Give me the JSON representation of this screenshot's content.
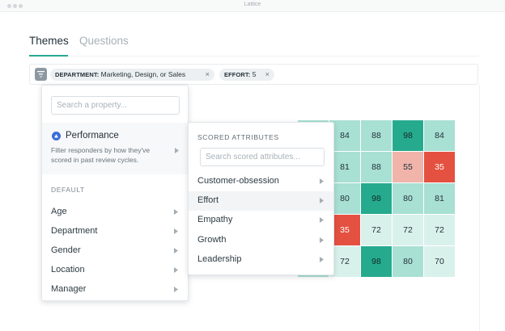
{
  "window": {
    "title": "Lattice"
  },
  "tabs": [
    {
      "label": "Themes",
      "active": true
    },
    {
      "label": "Questions",
      "active": false
    }
  ],
  "filters": {
    "chips": [
      {
        "key": "DEPARTMENT:",
        "value": "Marketing, Design, or Sales"
      },
      {
        "key": "EFFORT:",
        "value": "5"
      }
    ],
    "remove_glyph": "×"
  },
  "property_menu": {
    "search_placeholder": "Search a property...",
    "performance": {
      "title": "Performance",
      "description": "Filter responders by how they've scored in past review cycles."
    },
    "section_label": "DEFAULT",
    "items": [
      {
        "label": "Age"
      },
      {
        "label": "Department"
      },
      {
        "label": "Gender"
      },
      {
        "label": "Location"
      },
      {
        "label": "Manager"
      }
    ]
  },
  "scored_menu": {
    "section_label": "SCORED ATTRIBUTES",
    "search_placeholder": "Search scored attributes...",
    "items": [
      {
        "label": "Customer-obsession",
        "highlighted": false
      },
      {
        "label": "Effort",
        "highlighted": true
      },
      {
        "label": "Empathy",
        "highlighted": false
      },
      {
        "label": "Growth",
        "highlighted": false
      },
      {
        "label": "Leadership",
        "highlighted": false
      }
    ]
  },
  "heatmap": {
    "rows": [
      [
        {
          "value": "",
          "tone": "mint"
        },
        {
          "value": "84",
          "tone": "mint"
        },
        {
          "value": "88",
          "tone": "mint"
        },
        {
          "value": "98",
          "tone": "teal"
        },
        {
          "value": "84",
          "tone": "mint"
        }
      ],
      [
        {
          "value": "",
          "tone": "mint"
        },
        {
          "value": "81",
          "tone": "mint"
        },
        {
          "value": "88",
          "tone": "mint"
        },
        {
          "value": "55",
          "tone": "pink"
        },
        {
          "value": "35",
          "tone": "red"
        }
      ],
      [
        {
          "value": "",
          "tone": "mint"
        },
        {
          "value": "80",
          "tone": "mint"
        },
        {
          "value": "98",
          "tone": "teal"
        },
        {
          "value": "80",
          "tone": "mint"
        },
        {
          "value": "81",
          "tone": "mint"
        }
      ],
      [
        {
          "value": "",
          "tone": "pale"
        },
        {
          "value": "35",
          "tone": "red"
        },
        {
          "value": "72",
          "tone": "pale"
        },
        {
          "value": "72",
          "tone": "pale"
        },
        {
          "value": "72",
          "tone": "pale"
        }
      ],
      [
        {
          "value": "",
          "tone": "mint"
        },
        {
          "value": "72",
          "tone": "pale"
        },
        {
          "value": "98",
          "tone": "teal"
        },
        {
          "value": "80",
          "tone": "mint"
        },
        {
          "value": "70",
          "tone": "pale"
        }
      ]
    ]
  },
  "colors": {
    "accent": "#27a891",
    "teal": "#26aa8e",
    "mint": "#a8e0d3",
    "pale": "#d9f1eb",
    "red": "#e45140",
    "pink": "#f0b4ab",
    "performance_icon": "#3b6ed8"
  },
  "icons": {
    "filter": "filter-icon",
    "performance": "performance-icon",
    "submenu_arrow": "chevron-right-icon",
    "remove": "close-icon"
  }
}
